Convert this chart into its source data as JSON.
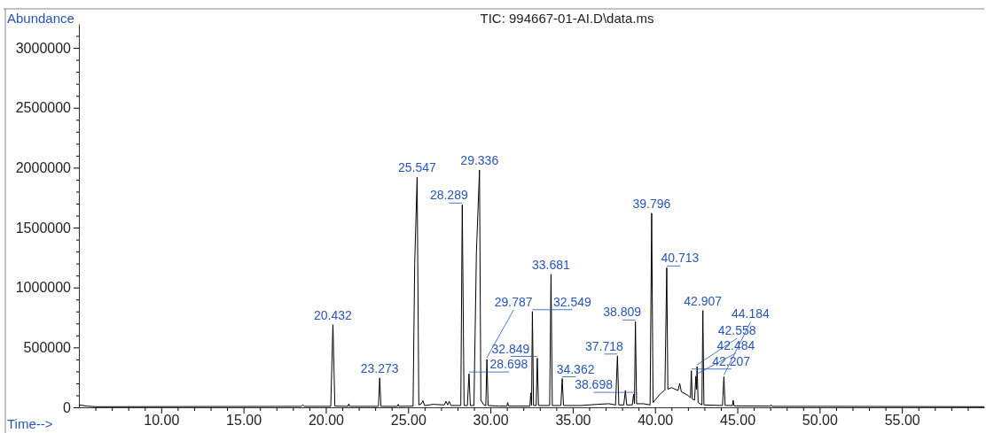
{
  "chart_data": {
    "type": "line",
    "title": "TIC: 994667-01-AI.D\\data.ms",
    "xlabel": "Time-->",
    "ylabel": "Abundance",
    "xlim": [
      5,
      60
    ],
    "ylim": [
      0,
      3200000
    ],
    "xticks": [
      {
        "value": 10,
        "label": "10.00"
      },
      {
        "value": 15,
        "label": "15.00"
      },
      {
        "value": 20,
        "label": "20.00"
      },
      {
        "value": 25,
        "label": "25.00"
      },
      {
        "value": 30,
        "label": "30.00"
      },
      {
        "value": 35,
        "label": "35.00"
      },
      {
        "value": 40,
        "label": "40.00"
      },
      {
        "value": 45,
        "label": "45.00"
      },
      {
        "value": 50,
        "label": "50.00"
      },
      {
        "value": 55,
        "label": "55.00"
      },
      {
        "value": 6,
        "label": null
      },
      {
        "value": 7,
        "label": null
      },
      {
        "value": 8,
        "label": null
      },
      {
        "value": 9,
        "label": null
      },
      {
        "value": 11,
        "label": null
      },
      {
        "value": 12,
        "label": null
      },
      {
        "value": 13,
        "label": null
      },
      {
        "value": 14,
        "label": null
      },
      {
        "value": 16,
        "label": null
      },
      {
        "value": 17,
        "label": null
      },
      {
        "value": 18,
        "label": null
      },
      {
        "value": 19,
        "label": null
      },
      {
        "value": 21,
        "label": null
      },
      {
        "value": 22,
        "label": null
      },
      {
        "value": 23,
        "label": null
      },
      {
        "value": 24,
        "label": null
      },
      {
        "value": 26,
        "label": null
      },
      {
        "value": 27,
        "label": null
      },
      {
        "value": 28,
        "label": null
      },
      {
        "value": 29,
        "label": null
      },
      {
        "value": 31,
        "label": null
      },
      {
        "value": 32,
        "label": null
      },
      {
        "value": 33,
        "label": null
      },
      {
        "value": 34,
        "label": null
      },
      {
        "value": 36,
        "label": null
      },
      {
        "value": 37,
        "label": null
      },
      {
        "value": 38,
        "label": null
      },
      {
        "value": 39,
        "label": null
      },
      {
        "value": 41,
        "label": null
      },
      {
        "value": 42,
        "label": null
      },
      {
        "value": 43,
        "label": null
      },
      {
        "value": 44,
        "label": null
      },
      {
        "value": 46,
        "label": null
      },
      {
        "value": 47,
        "label": null
      },
      {
        "value": 48,
        "label": null
      },
      {
        "value": 49,
        "label": null
      },
      {
        "value": 51,
        "label": null
      },
      {
        "value": 52,
        "label": null
      },
      {
        "value": 53,
        "label": null
      },
      {
        "value": 54,
        "label": null
      },
      {
        "value": 56,
        "label": null
      },
      {
        "value": 57,
        "label": null
      },
      {
        "value": 58,
        "label": null
      },
      {
        "value": 59,
        "label": null
      }
    ],
    "yticks": [
      0,
      500000,
      1000000,
      1500000,
      2000000,
      2500000,
      3000000,
      {
        "value": 100000,
        "label": null
      },
      {
        "value": 200000,
        "label": null
      },
      {
        "value": 300000,
        "label": null
      },
      {
        "value": 400000,
        "label": null
      },
      {
        "value": 600000,
        "label": null
      },
      {
        "value": 700000,
        "label": null
      },
      {
        "value": 800000,
        "label": null
      },
      {
        "value": 900000,
        "label": null
      },
      {
        "value": 1100000,
        "label": null
      },
      {
        "value": 1200000,
        "label": null
      },
      {
        "value": 1300000,
        "label": null
      },
      {
        "value": 1400000,
        "label": null
      },
      {
        "value": 1600000,
        "label": null
      },
      {
        "value": 1700000,
        "label": null
      },
      {
        "value": 1800000,
        "label": null
      },
      {
        "value": 1900000,
        "label": null
      },
      {
        "value": 2100000,
        "label": null
      },
      {
        "value": 2200000,
        "label": null
      },
      {
        "value": 2300000,
        "label": null
      },
      {
        "value": 2400000,
        "label": null
      },
      {
        "value": 2600000,
        "label": null
      },
      {
        "value": 2700000,
        "label": null
      },
      {
        "value": 2800000,
        "label": null
      },
      {
        "value": 2900000,
        "label": null
      },
      {
        "value": 3100000,
        "label": null
      }
    ],
    "grid": false,
    "marker": "none",
    "line_style": "solid",
    "series": [
      {
        "color": "#000000",
        "x": [
          5.0,
          5.5,
          6,
          18.5,
          18.6,
          18.7,
          20.3,
          20.432,
          20.55,
          21.35,
          21.4,
          21.45,
          23.2,
          23.273,
          23.35,
          24.35,
          24.4,
          24.45,
          25.3,
          25.4,
          25.547,
          25.65,
          25.8,
          25.9,
          26.0,
          26.3,
          26.5,
          27.2,
          27.3,
          27.4,
          27.5,
          27.6,
          28.2,
          28.289,
          28.4,
          28.6,
          28.698,
          28.78,
          29.0,
          29.15,
          29.336,
          29.42,
          29.6,
          29.72,
          29.787,
          29.86,
          30.5,
          31.0,
          31.05,
          31.1,
          32.4,
          32.45,
          32.5,
          32.549,
          32.62,
          32.78,
          32.849,
          32.92,
          33.6,
          33.681,
          33.76,
          34.28,
          34.362,
          34.44,
          35.5,
          36.5,
          37.2,
          37.6,
          37.718,
          37.8,
          38.1,
          38.2,
          38.28,
          38.62,
          38.698,
          38.75,
          38.809,
          38.88,
          39.3,
          39.7,
          39.796,
          39.88,
          40.3,
          40.6,
          40.713,
          40.78,
          41.0,
          41.4,
          41.5,
          41.6,
          42.0,
          42.15,
          42.207,
          42.26,
          42.4,
          42.484,
          42.52,
          42.558,
          42.62,
          42.85,
          42.907,
          42.97,
          44.1,
          44.184,
          44.26,
          44.7,
          44.75,
          44.8,
          47.0,
          47.05,
          47.1,
          50.5,
          60
        ],
        "values": [
          20000,
          10000,
          5000,
          8000,
          20000,
          8000,
          8000,
          690000,
          10000,
          8000,
          30000,
          8000,
          8000,
          245000,
          8000,
          8000,
          25000,
          8000,
          10000,
          1200000,
          1920000,
          20000,
          30000,
          55000,
          15000,
          20000,
          25000,
          20000,
          50000,
          20000,
          50000,
          15000,
          15000,
          1690000,
          15000,
          15000,
          280000,
          15000,
          15000,
          1300000,
          1980000,
          60000,
          20000,
          15000,
          400000,
          15000,
          10000,
          10000,
          40000,
          10000,
          10000,
          120000,
          15000,
          800000,
          15000,
          15000,
          410000,
          15000,
          15000,
          1110000,
          15000,
          15000,
          240000,
          15000,
          15000,
          25000,
          30000,
          20000,
          430000,
          20000,
          20000,
          140000,
          20000,
          20000,
          110000,
          30000,
          714000,
          30000,
          30000,
          20000,
          1620000,
          40000,
          110000,
          145000,
          1165000,
          150000,
          165000,
          140000,
          200000,
          130000,
          100000,
          80000,
          305000,
          70000,
          60000,
          260000,
          150000,
          340000,
          40000,
          20000,
          808000,
          20000,
          15000,
          255000,
          15000,
          15000,
          58000,
          12000,
          10000,
          20000,
          8000,
          8000,
          5000
        ]
      }
    ],
    "annotations": [
      {
        "text": "20.432",
        "x": 20.432,
        "y": 690000
      },
      {
        "text": "23.273",
        "x": 23.273,
        "y": 245000
      },
      {
        "text": "25.547",
        "x": 25.547,
        "y": 1920000
      },
      {
        "text": "28.289",
        "x": 28.289,
        "y": 1690000
      },
      {
        "text": "28.698",
        "x": 28.698,
        "y": 280000
      },
      {
        "text": "29.336",
        "x": 29.336,
        "y": 1980000
      },
      {
        "text": "29.787",
        "x": 29.787,
        "y": 400000
      },
      {
        "text": "32.549",
        "x": 32.549,
        "y": 800000
      },
      {
        "text": "32.849",
        "x": 32.849,
        "y": 410000
      },
      {
        "text": "33.681",
        "x": 33.681,
        "y": 1110000
      },
      {
        "text": "34.362",
        "x": 34.362,
        "y": 240000
      },
      {
        "text": "37.718",
        "x": 37.718,
        "y": 430000
      },
      {
        "text": "38.698",
        "x": 38.698,
        "y": 110000
      },
      {
        "text": "38.809",
        "x": 38.809,
        "y": 714000
      },
      {
        "text": "39.796",
        "x": 39.796,
        "y": 1620000
      },
      {
        "text": "40.713",
        "x": 40.713,
        "y": 1165000
      },
      {
        "text": "42.207",
        "x": 42.207,
        "y": 305000
      },
      {
        "text": "42.484",
        "x": 42.484,
        "y": 260000
      },
      {
        "text": "42.558",
        "x": 42.558,
        "y": 340000
      },
      {
        "text": "42.907",
        "x": 42.907,
        "y": 808000
      },
      {
        "text": "44.184",
        "x": 44.184,
        "y": 255000
      }
    ]
  }
}
